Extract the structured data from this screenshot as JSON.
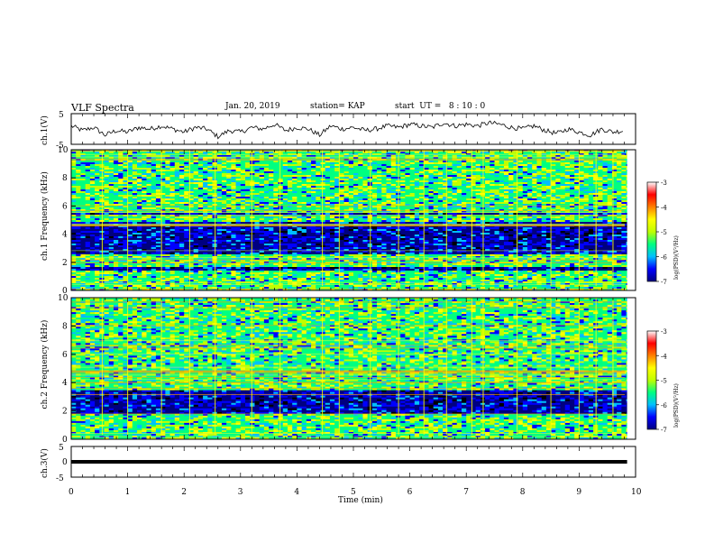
{
  "header": {
    "title": "VLF Spectra",
    "date": "Jan. 20, 2019",
    "station": "station= KAP",
    "start": "start  UT =   8 : 10 : 0"
  },
  "colorbar": {
    "ticks": [
      "-3",
      "-4",
      "-5",
      "-6",
      "-7"
    ],
    "label": "log(PSD)(V²/Hz)",
    "colors": [
      "#000080",
      "#0000ff",
      "#00bfff",
      "#00ff80",
      "#bfff00",
      "#ffff00",
      "#ff8000",
      "#ff0000",
      "#ffffff"
    ]
  },
  "chart_data": [
    {
      "type": "line",
      "ylabel": "ch.1(V)",
      "ylim": [
        -5,
        5
      ],
      "yticks": [
        "5",
        "-5"
      ],
      "x": [
        0.0,
        0.2,
        0.4,
        0.6,
        0.8,
        1.0,
        1.2,
        1.4,
        1.6,
        1.8,
        2.0,
        2.2,
        2.4,
        2.6,
        2.8,
        3.0,
        3.2,
        3.4,
        3.6,
        3.8,
        4.0,
        4.2,
        4.4,
        4.6,
        4.8,
        5.0,
        5.2,
        5.4,
        5.6,
        5.8,
        6.0,
        6.2,
        6.4,
        6.6,
        6.8,
        7.0,
        7.2,
        7.4,
        7.6,
        7.8,
        8.0,
        8.2,
        8.4,
        8.6,
        8.8,
        9.0,
        9.2,
        9.4,
        9.6,
        9.8
      ],
      "y": [
        1.0,
        -0.5,
        0.5,
        -2.0,
        -0.5,
        -1.0,
        0.5,
        0.0,
        1.0,
        0.0,
        -1.0,
        0.5,
        0.0,
        -2.5,
        -0.5,
        -1.0,
        0.5,
        0.0,
        1.5,
        -0.5,
        0.5,
        0.0,
        -2.0,
        1.0,
        0.0,
        0.5,
        -0.5,
        0.0,
        1.0,
        0.5,
        1.5,
        1.0,
        0.5,
        2.0,
        1.0,
        1.5,
        1.0,
        2.0,
        1.5,
        0.5,
        0.0,
        1.0,
        -0.5,
        -1.5,
        0.0,
        -1.0,
        -2.0,
        0.0,
        -1.0,
        -0.5
      ]
    },
    {
      "type": "heatmap",
      "ylabel": "ch.1 Frequency (kHz)",
      "ylim": [
        0,
        10
      ],
      "yticks": [
        "0",
        "2",
        "4",
        "6",
        "8",
        "10"
      ],
      "description_bands_khz": {
        "strong": [
          [
            0.0,
            1.4
          ],
          [
            1.7,
            2.6
          ],
          [
            4.9,
            5.4
          ],
          [
            5.5,
            10.0
          ]
        ],
        "weak": [
          [
            2.6,
            4.9
          ],
          [
            1.4,
            1.7
          ]
        ]
      },
      "vertical_spikes_min": [
        0.55,
        1.0,
        1.6,
        2.1,
        2.55,
        3.2,
        3.7,
        4.45,
        4.75,
        5.3,
        5.8,
        6.25,
        6.65,
        7.1,
        7.3,
        7.9,
        8.5,
        9.0,
        9.3,
        9.6
      ]
    },
    {
      "type": "heatmap",
      "ylabel": "ch.2 Frequency (kHz)",
      "ylim": [
        0,
        10
      ],
      "yticks": [
        "0",
        "2",
        "4",
        "6",
        "8",
        "10"
      ],
      "description_bands_khz": {
        "strong": [
          [
            0.0,
            1.8
          ],
          [
            3.5,
            10.0
          ]
        ],
        "weak": [
          [
            1.8,
            3.5
          ]
        ]
      },
      "vertical_spikes_min": [
        0.55,
        1.0,
        1.6,
        2.1,
        2.55,
        3.2,
        3.7,
        4.45,
        4.75,
        5.3,
        5.8,
        6.25,
        6.65,
        7.1,
        7.3,
        7.9,
        8.5,
        9.0,
        9.3,
        9.6
      ]
    },
    {
      "type": "line",
      "ylabel": "ch.3(V)",
      "ylim": [
        -5,
        5
      ],
      "yticks": [
        "5",
        "0",
        "-5"
      ],
      "x": [
        0,
        9.85
      ],
      "y": [
        0,
        0
      ]
    }
  ],
  "xaxis": {
    "label": "Time (min)",
    "xlim": [
      0,
      10
    ],
    "ticks": [
      "0",
      "1",
      "2",
      "3",
      "4",
      "5",
      "6",
      "7",
      "8",
      "9",
      "10"
    ]
  }
}
